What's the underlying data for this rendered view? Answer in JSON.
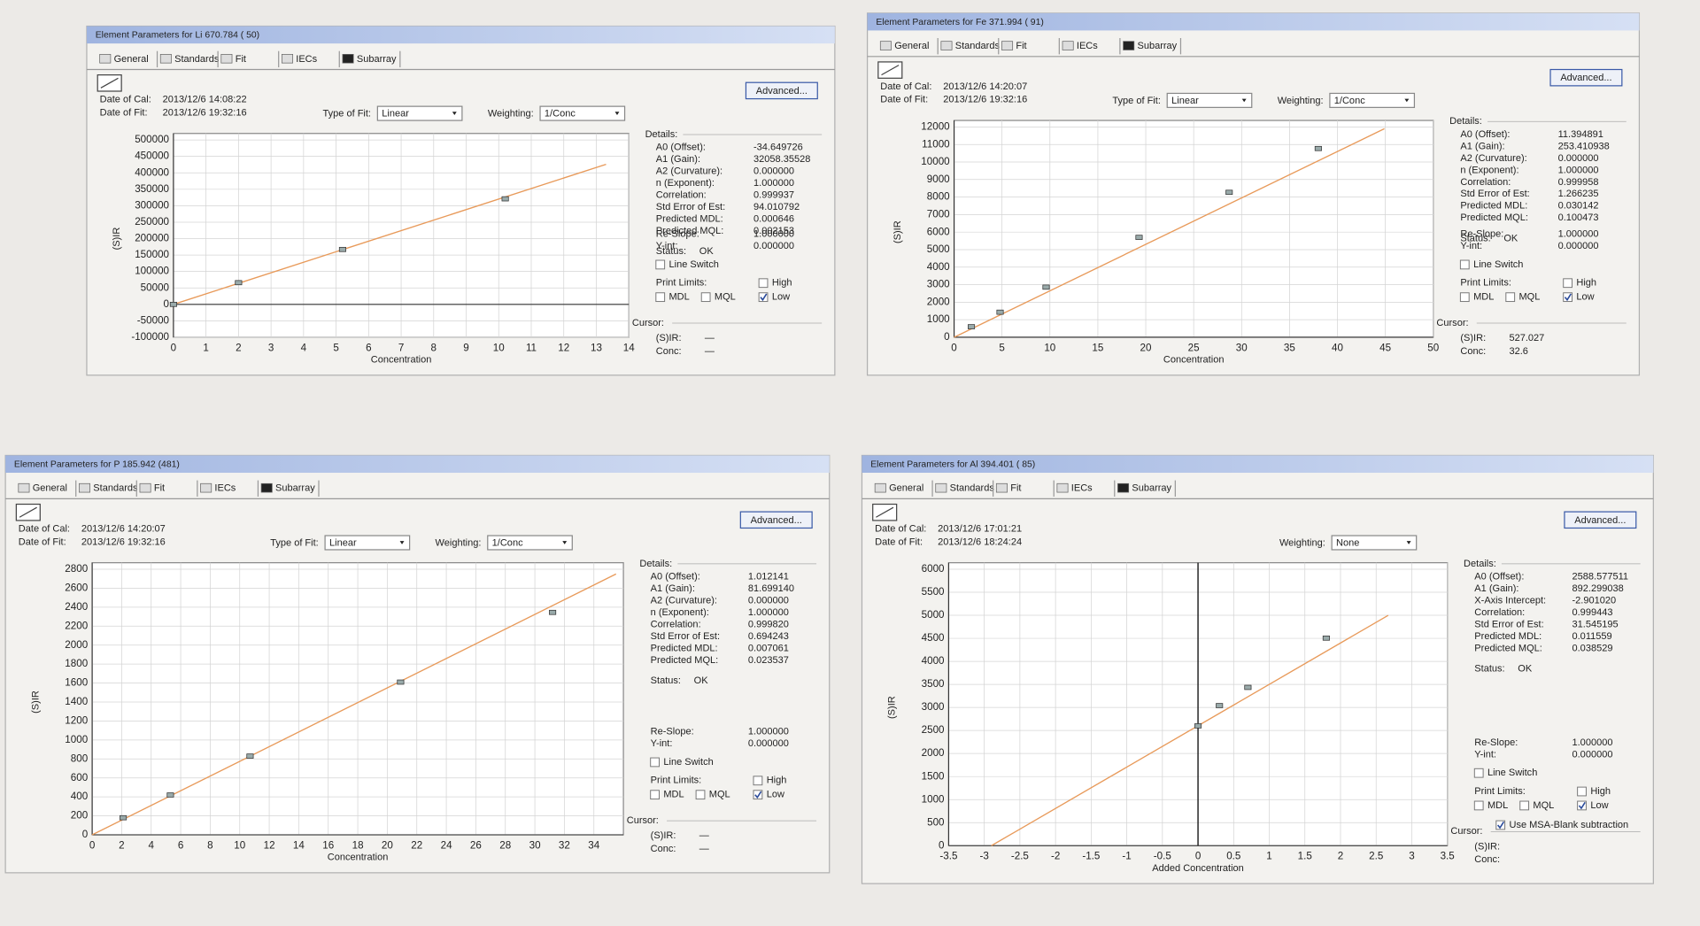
{
  "labels": {
    "date_cal": "Date of Cal:",
    "date_fit": "Date of Fit:",
    "fit_type": "Type of Fit:",
    "weighting": "Weighting:",
    "advanced": "Advanced...",
    "details": "Details:",
    "status": "Status:",
    "re_slope": "Re-Slope:",
    "y_int": "Y-int:",
    "line_switch": "Line Switch",
    "print_limits": "Print Limits:",
    "high": "High",
    "mdl": "MDL",
    "mql": "MQL",
    "low": "Low",
    "cursor": "Cursor:",
    "sir": "(S)IR:",
    "conc": "Conc:"
  },
  "tabs": [
    "General",
    "Standards",
    "Fit",
    "IECs",
    "Subarray"
  ],
  "panels": [
    {
      "title": "Element Parameters for Li 670.784 ( 50)",
      "date_cal": "2013/12/6 14:08:22",
      "date_fit": "2013/12/6 19:32:16",
      "fit_type": "Linear",
      "weighting": "1/Conc",
      "details": [
        {
          "label": "A0 (Offset):",
          "value": "-34.649726"
        },
        {
          "label": "A1 (Gain):",
          "value": "32058.35528"
        },
        {
          "label": "A2 (Curvature):",
          "value": "0.000000"
        },
        {
          "label": "n (Exponent):",
          "value": "1.000000"
        },
        {
          "label": "Correlation:",
          "value": "0.999937"
        },
        {
          "label": "Std Error of Est:",
          "value": "94.010792"
        },
        {
          "label": "Predicted MDL:",
          "value": "0.000646"
        },
        {
          "label": "Predicted MQL:",
          "value": "0.002153"
        }
      ],
      "status": "OK",
      "re_slope": "1.000000",
      "y_int": "0.000000",
      "checks": {
        "line_switch": false,
        "high": false,
        "mdl": false,
        "mql": false,
        "low": true
      },
      "cursor_sir": "—",
      "cursor_conc": "—",
      "chart": {
        "type": "scatter",
        "x_label": "Concentration",
        "y_label": "(S)IR",
        "xlim": [
          0,
          14
        ],
        "ylim": [
          -100000,
          500000
        ],
        "xticks": [
          0,
          1,
          2,
          3,
          4,
          5,
          6,
          7,
          8,
          9,
          10,
          11,
          12,
          13,
          14
        ],
        "yticks": [
          -100000,
          -50000,
          0,
          50000,
          100000,
          150000,
          200000,
          250000,
          300000,
          350000,
          400000,
          450000,
          500000
        ],
        "x": [
          0,
          2,
          5.2,
          10.2
        ],
        "y": [
          0,
          66000,
          167000,
          321000
        ],
        "fit_x": [
          0,
          13.3
        ],
        "fit_y": [
          0,
          426000
        ],
        "color": "#e89a5a",
        "grid": true
      }
    },
    {
      "title": "Element Parameters for Fe 371.994 ( 91)",
      "date_cal": "2013/12/6 14:20:07",
      "date_fit": "2013/12/6 19:32:16",
      "fit_type": "Linear",
      "weighting": "1/Conc",
      "details": [
        {
          "label": "A0 (Offset):",
          "value": "11.394891"
        },
        {
          "label": "A1 (Gain):",
          "value": "253.410938"
        },
        {
          "label": "A2 (Curvature):",
          "value": "0.000000"
        },
        {
          "label": "n (Exponent):",
          "value": "1.000000"
        },
        {
          "label": "Correlation:",
          "value": "0.999958"
        },
        {
          "label": "Std Error of Est:",
          "value": "1.266235"
        },
        {
          "label": "Predicted MDL:",
          "value": "0.030142"
        },
        {
          "label": "Predicted MQL:",
          "value": "0.100473"
        }
      ],
      "status": "OK",
      "re_slope": "1.000000",
      "y_int": "0.000000",
      "checks": {
        "line_switch": false,
        "high": false,
        "mdl": false,
        "mql": false,
        "low": true
      },
      "cursor_sir": "527.027",
      "cursor_conc": "32.6",
      "chart": {
        "type": "scatter",
        "x_label": "Concentration",
        "y_label": "(S)IR",
        "xlim": [
          0,
          50
        ],
        "ylim": [
          0,
          12000
        ],
        "xticks": [
          0,
          5,
          10,
          15,
          20,
          25,
          30,
          35,
          40,
          45,
          50
        ],
        "yticks": [
          0,
          1000,
          2000,
          3000,
          4000,
          5000,
          6000,
          7000,
          8000,
          9000,
          10000,
          11000,
          12000
        ],
        "x": [
          1.8,
          4.8,
          9.6,
          19.3,
          28.7,
          38
        ],
        "y": [
          600,
          1430,
          2860,
          5700,
          8270,
          10770
        ],
        "fit_x": [
          0,
          44.9
        ],
        "fit_y": [
          0,
          11900
        ],
        "color": "#e89a5a",
        "grid": true
      }
    },
    {
      "title": "Element Parameters for P 185.942 (481)",
      "date_cal": "2013/12/6 14:20:07",
      "date_fit": "2013/12/6 19:32:16",
      "fit_type": "Linear",
      "weighting": "1/Conc",
      "details": [
        {
          "label": "A0 (Offset):",
          "value": "1.012141"
        },
        {
          "label": "A1 (Gain):",
          "value": "81.699140"
        },
        {
          "label": "A2 (Curvature):",
          "value": "0.000000"
        },
        {
          "label": "n (Exponent):",
          "value": "1.000000"
        },
        {
          "label": "Correlation:",
          "value": "0.999820"
        },
        {
          "label": "Std Error of Est:",
          "value": "0.694243"
        },
        {
          "label": "Predicted MDL:",
          "value": "0.007061"
        },
        {
          "label": "Predicted MQL:",
          "value": "0.023537"
        }
      ],
      "status": "OK",
      "re_slope": "1.000000",
      "y_int": "0.000000",
      "checks": {
        "line_switch": false,
        "high": false,
        "mdl": false,
        "mql": false,
        "low": true
      },
      "cursor_sir": "—",
      "cursor_conc": "—",
      "chart": {
        "type": "scatter",
        "x_label": "Concentration",
        "y_label": "(S)IR",
        "xlim": [
          0,
          36
        ],
        "ylim": [
          0,
          2800
        ],
        "xticks": [
          0,
          2,
          4,
          6,
          8,
          10,
          12,
          14,
          16,
          18,
          20,
          22,
          24,
          26,
          28,
          30,
          32,
          34
        ],
        "yticks": [
          0,
          200,
          400,
          600,
          800,
          1000,
          1200,
          1400,
          1600,
          1800,
          2000,
          2200,
          2400,
          2600,
          2800
        ],
        "x": [
          2.1,
          5.3,
          10.7,
          20.9,
          31.2
        ],
        "y": [
          180,
          420,
          830,
          1610,
          2345
        ],
        "fit_x": [
          0,
          35.5
        ],
        "fit_y": [
          0,
          2750
        ],
        "color": "#e89a5a",
        "grid": true
      }
    },
    {
      "title": "Element Parameters for Al 394.401 ( 85)",
      "date_cal": "2013/12/6 17:01:21",
      "date_fit": "2013/12/6 18:24:24",
      "weighting": "None",
      "details": [
        {
          "label": "A0 (Offset):",
          "value": "2588.577511"
        },
        {
          "label": "A1 (Gain):",
          "value": "892.299038"
        },
        {
          "label": "X-Axis Intercept:",
          "value": "-2.901020"
        },
        {
          "label": "Correlation:",
          "value": "0.999443"
        },
        {
          "label": "Std Error of Est:",
          "value": "31.545195"
        },
        {
          "label": "Predicted MDL:",
          "value": "0.011559"
        },
        {
          "label": "Predicted MQL:",
          "value": "0.038529"
        }
      ],
      "status": "OK",
      "re_slope": "1.000000",
      "y_int": "0.000000",
      "checks": {
        "line_switch": false,
        "high": false,
        "mdl": false,
        "mql": false,
        "low": true
      },
      "msa": {
        "label": "Use MSA-Blank subtraction",
        "checked": true
      },
      "chart": {
        "type": "scatter",
        "x_label": "Added Concentration",
        "y_label": "(S)IR",
        "xlim": [
          -3.5,
          3.5
        ],
        "ylim": [
          0,
          6000
        ],
        "xticks": [
          -3.5,
          -3,
          -2.5,
          -2,
          -1.5,
          -1,
          -0.5,
          0,
          0.5,
          1,
          1.5,
          2,
          2.5,
          3,
          3.5
        ],
        "yticks": [
          0,
          500,
          1000,
          1500,
          2000,
          2500,
          3000,
          3500,
          4000,
          4500,
          5000,
          5500,
          6000
        ],
        "x": [
          0,
          0.3,
          0.7,
          1.8
        ],
        "y": [
          2600,
          3040,
          3435,
          4505
        ],
        "fit_x": [
          -2.9,
          2.67
        ],
        "fit_y": [
          0,
          5000
        ],
        "cursor_x": 0,
        "color": "#e89a5a",
        "grid": true
      }
    }
  ]
}
